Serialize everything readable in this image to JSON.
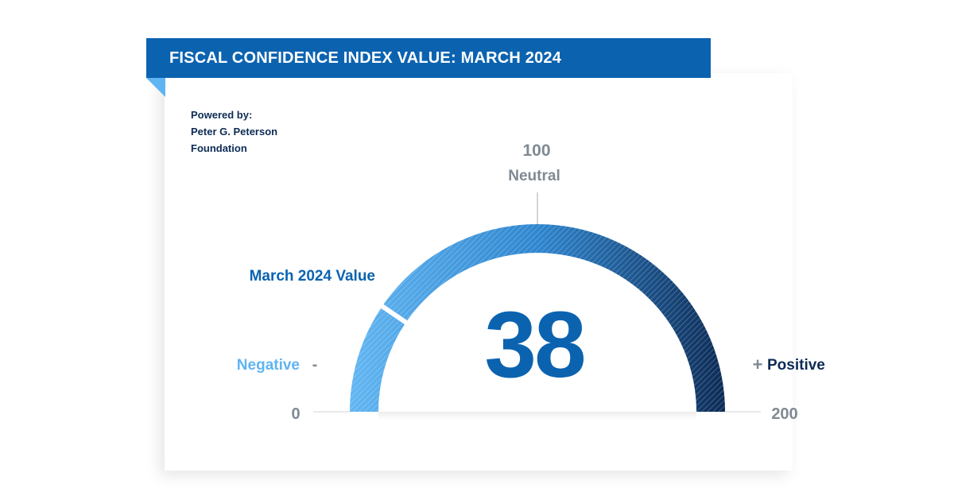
{
  "header": {
    "title": "FISCAL CONFIDENCE INDEX VALUE: MARCH 2024"
  },
  "powered_by": {
    "line1": "Powered by:",
    "line2": "Peter G. Peterson",
    "line3": "Foundation"
  },
  "colors": {
    "banner": "#0b63b0",
    "negative": "#5fb4f2",
    "positive": "#0d2b55",
    "value": "#0b63b0",
    "gray": "#7f8a93"
  },
  "chart_data": {
    "type": "gauge",
    "min": 0,
    "max": 200,
    "value": 38,
    "value_text": "38",
    "value_label": "March 2024 Value",
    "min_label": "0",
    "max_label": "200",
    "neutral_value_label": "100",
    "neutral_label": "Neutral",
    "negative_label": "Negative",
    "negative_sign": "-",
    "positive_label": "Positive",
    "positive_sign": "+"
  }
}
